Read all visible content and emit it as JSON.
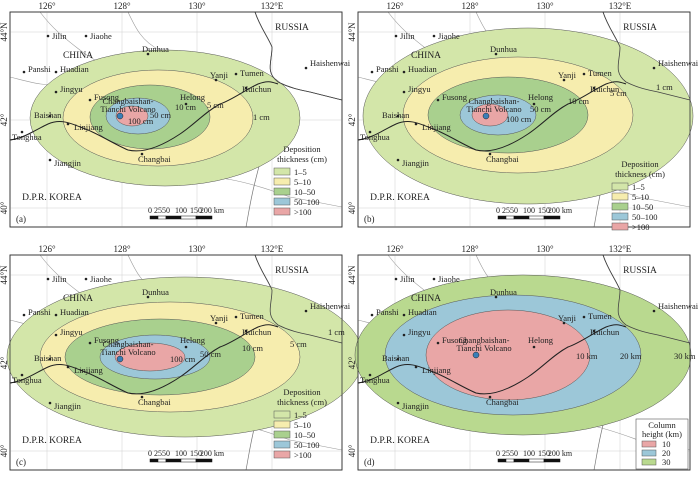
{
  "lon_labels": [
    "126°",
    "128°",
    "130°",
    "132°E"
  ],
  "lat_labels": [
    "44°N",
    "42°",
    "40°"
  ],
  "places": {
    "jilin": "Jilin",
    "jiaohe": "Jiaohe",
    "china": "CHINA",
    "russia": "RUSSIA",
    "dunhua": "Dunhua",
    "panshi": "Panshi",
    "huadian": "Huadian",
    "jingyu": "Jingyu",
    "fusong": "Fusong",
    "yanji": "Yanji",
    "tumen": "Tumen",
    "huichun": "Huichun",
    "helong": "Helong",
    "baishan": "Baishan",
    "linjiang": "Linjiang",
    "tonghua": "Tonghua",
    "changbai": "Changbai",
    "jiangjin": "Jiangjin",
    "haishenwai": "Haishenwai",
    "dprk": "D.P.R. KOREA"
  },
  "volcano": {
    "line1": "Changbaishan-",
    "line2": "Tianchi Volcano"
  },
  "thickness_contours": [
    "100 cm",
    "50 cm",
    "10 cm",
    "5 cm",
    "1 cm"
  ],
  "height_contours": [
    "10 km",
    "20 km",
    "30 km"
  ],
  "deposition_legend": {
    "title_line1": "Deposition",
    "title_line2": "thickness (cm)",
    "items": [
      {
        "label": "1–5",
        "color": "#d3e6a9"
      },
      {
        "label": "5–10",
        "color": "#f6edae"
      },
      {
        "label": "10–50",
        "color": "#a9d08e"
      },
      {
        "label": "50–100",
        "color": "#9cc7d8"
      },
      {
        "label": ">100",
        "color": "#e9a6a6"
      }
    ]
  },
  "column_legend": {
    "title_line1": "Column",
    "title_line2": "height (km)",
    "items": [
      {
        "label": "10",
        "color": "#e9a6a6"
      },
      {
        "label": "20",
        "color": "#9cc7d8"
      },
      {
        "label": "30",
        "color": "#b9d98f"
      }
    ]
  },
  "scale_bar": {
    "ticks": [
      "0",
      "25",
      "50",
      "100",
      "150",
      "200 km"
    ]
  },
  "panels": [
    {
      "label": "(a)"
    },
    {
      "label": "(b)"
    },
    {
      "label": "(c)"
    },
    {
      "label": "(d)"
    }
  ]
}
